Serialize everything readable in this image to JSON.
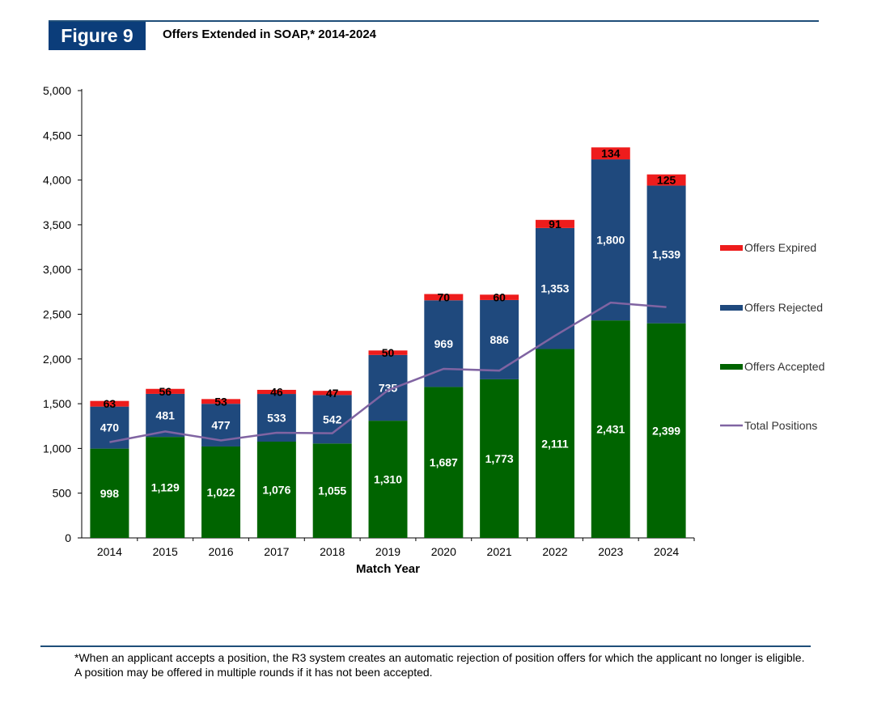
{
  "figure": {
    "label": "Figure 9",
    "title": "Offers Extended in SOAP,* 2014-2024"
  },
  "chart_data": {
    "type": "bar",
    "stacked": true,
    "title": "Offers Extended in SOAP,* 2014-2024",
    "xlabel": "Match Year",
    "ylabel": "",
    "ylim": [
      0,
      5000
    ],
    "yticks": [
      0,
      500,
      1000,
      1500,
      2000,
      2500,
      3000,
      3500,
      4000,
      4500,
      5000
    ],
    "ytick_labels": [
      "0",
      "500",
      "1,000",
      "1,500",
      "2,000",
      "2,500",
      "3,000",
      "3,500",
      "4,000",
      "4,500",
      "5,000"
    ],
    "categories": [
      "2014",
      "2015",
      "2016",
      "2017",
      "2018",
      "2019",
      "2020",
      "2021",
      "2022",
      "2023",
      "2024"
    ],
    "series": [
      {
        "name": "Offers Accepted",
        "color": "#006400",
        "values": [
          998,
          1129,
          1022,
          1076,
          1055,
          1310,
          1687,
          1773,
          2111,
          2431,
          2399
        ],
        "labels": [
          "998",
          "1,129",
          "1,022",
          "1,076",
          "1,055",
          "1,310",
          "1,687",
          "1,773",
          "2,111",
          "2,431",
          "2,399"
        ]
      },
      {
        "name": "Offers Rejected",
        "color": "#1f497d",
        "values": [
          470,
          481,
          477,
          533,
          542,
          735,
          969,
          886,
          1353,
          1800,
          1539
        ],
        "labels": [
          "470",
          "481",
          "477",
          "533",
          "542",
          "735",
          "969",
          "886",
          "1,353",
          "1,800",
          "1,539"
        ]
      },
      {
        "name": "Offers Expired",
        "color": "#ee1c1c",
        "values": [
          63,
          56,
          53,
          46,
          47,
          50,
          70,
          60,
          91,
          134,
          125
        ],
        "labels": [
          "63",
          "56",
          "53",
          "46",
          "47",
          "50",
          "70",
          "60",
          "91",
          "134",
          "125"
        ]
      }
    ],
    "line": {
      "name": "Total Positions",
      "color": "#8064a2",
      "values": [
        1070,
        1190,
        1090,
        1175,
        1170,
        1650,
        1890,
        1870,
        2260,
        2630,
        2580
      ]
    },
    "legend": {
      "placement": "right",
      "items": [
        {
          "name": "Offers Expired",
          "color": "#ee1c1c",
          "kind": "box"
        },
        {
          "name": "Offers Rejected",
          "color": "#1f497d",
          "kind": "box"
        },
        {
          "name": "Offers Accepted",
          "color": "#006400",
          "kind": "box"
        },
        {
          "name": "Total Positions",
          "color": "#8064a2",
          "kind": "line"
        }
      ]
    }
  },
  "footnote": "*When an applicant accepts a position, the R3 system creates an automatic rejection of position offers for which the applicant no longer is eligible. A position may be offered in multiple rounds if it has not been accepted."
}
